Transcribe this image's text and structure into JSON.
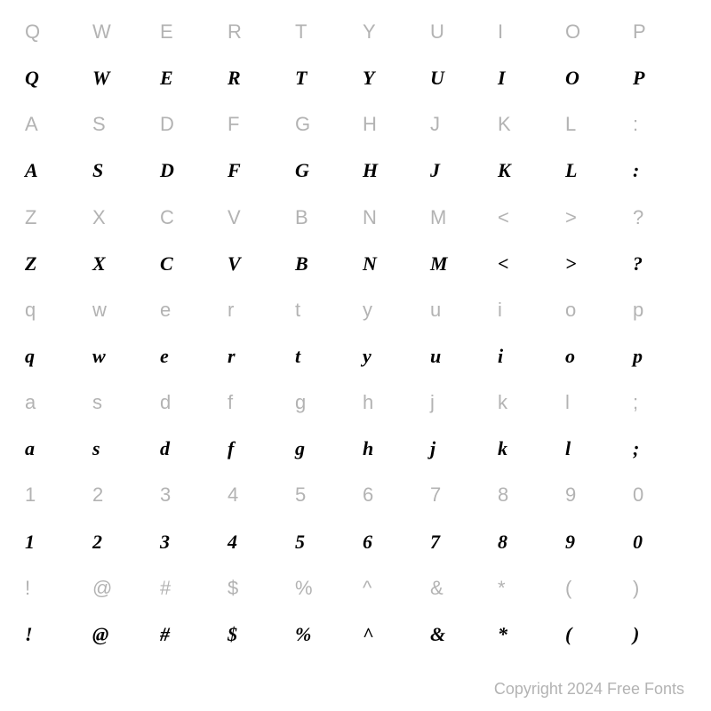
{
  "rows": [
    {
      "type": "label",
      "cells": [
        "Q",
        "W",
        "E",
        "R",
        "T",
        "Y",
        "U",
        "I",
        "O",
        "P"
      ]
    },
    {
      "type": "glyph",
      "cells": [
        "Q",
        "W",
        "E",
        "R",
        "T",
        "Y",
        "U",
        "I",
        "O",
        "P"
      ]
    },
    {
      "type": "label",
      "cells": [
        "A",
        "S",
        "D",
        "F",
        "G",
        "H",
        "J",
        "K",
        "L",
        ":"
      ]
    },
    {
      "type": "glyph",
      "cells": [
        "A",
        "S",
        "D",
        "F",
        "G",
        "H",
        "J",
        "K",
        "L",
        ":"
      ]
    },
    {
      "type": "label",
      "cells": [
        "Z",
        "X",
        "C",
        "V",
        "B",
        "N",
        "M",
        "<",
        ">",
        "?"
      ]
    },
    {
      "type": "glyph",
      "cells": [
        "Z",
        "X",
        "C",
        "V",
        "B",
        "N",
        "M",
        "<",
        ">",
        "?"
      ]
    },
    {
      "type": "label",
      "cells": [
        "q",
        "w",
        "e",
        "r",
        "t",
        "y",
        "u",
        "i",
        "o",
        "p"
      ]
    },
    {
      "type": "glyph",
      "cells": [
        "q",
        "w",
        "e",
        "r",
        "t",
        "y",
        "u",
        "i",
        "o",
        "p"
      ]
    },
    {
      "type": "label",
      "cells": [
        "a",
        "s",
        "d",
        "f",
        "g",
        "h",
        "j",
        "k",
        "l",
        ";"
      ]
    },
    {
      "type": "glyph",
      "cells": [
        "a",
        "s",
        "d",
        "f",
        "g",
        "h",
        "j",
        "k",
        "l",
        ";"
      ]
    },
    {
      "type": "label",
      "cells": [
        "1",
        "2",
        "3",
        "4",
        "5",
        "6",
        "7",
        "8",
        "9",
        "0"
      ]
    },
    {
      "type": "glyph",
      "cells": [
        "1",
        "2",
        "3",
        "4",
        "5",
        "6",
        "7",
        "8",
        "9",
        "0"
      ]
    },
    {
      "type": "label",
      "cells": [
        "!",
        "@",
        "#",
        "$",
        "%",
        "^",
        "&",
        "*",
        "(",
        ")"
      ]
    },
    {
      "type": "glyph",
      "cells": [
        "!",
        "@",
        "#",
        "$",
        "%",
        "^",
        "&",
        "*",
        "(",
        ")"
      ]
    }
  ],
  "label_color": "#b3b3b3",
  "glyph_color": "#000000",
  "background_color": "#ffffff",
  "label_fontsize": 22,
  "glyph_fontsize": 22,
  "columns": 10,
  "copyright": "Copyright 2024 Free Fonts"
}
